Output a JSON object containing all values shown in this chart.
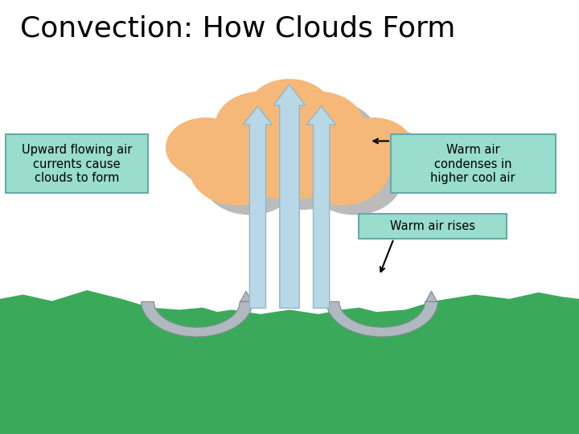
{
  "title": "Convection: How Clouds Form",
  "title_fontsize": 26,
  "background_color": "#ffffff",
  "cloud_color": "#f5b878",
  "cloud_shadow_color": "#bbbbbb",
  "arrow_color": "#b8d8e8",
  "arrow_edge_color": "#90b8cc",
  "u_arrow_color": "#b0b8c0",
  "u_arrow_edge_color": "#808890",
  "ground_color": "#3aaa5a",
  "label_box_color": "#99ddcc",
  "label_box_edge": "#66aaaa",
  "label1_text": "Upward flowing air\ncurrents cause\nclouds to form",
  "label2_text": "Warm air\ncondenses in\nhigher cool air",
  "label3_text": "Warm air rises",
  "label_fontsize": 10.5,
  "cloud_circles": [
    [
      5.0,
      6.4,
      1.0
    ],
    [
      4.1,
      6.1,
      0.82
    ],
    [
      5.9,
      6.1,
      0.82
    ],
    [
      3.55,
      6.6,
      0.68
    ],
    [
      6.45,
      6.6,
      0.68
    ],
    [
      4.5,
      7.1,
      0.78
    ],
    [
      5.5,
      7.1,
      0.78
    ],
    [
      5.0,
      7.45,
      0.72
    ],
    [
      4.1,
      6.75,
      0.6
    ],
    [
      5.9,
      6.75,
      0.6
    ]
  ],
  "ground_x": [
    0,
    0.4,
    0.9,
    1.5,
    2.1,
    2.6,
    3.1,
    3.5,
    3.75,
    4.0,
    4.5,
    5.0,
    5.5,
    5.9,
    6.2,
    6.5,
    7.0,
    7.5,
    8.2,
    8.8,
    9.3,
    9.7,
    10.0,
    10.0,
    0.0
  ],
  "ground_y": [
    3.1,
    3.2,
    3.05,
    3.3,
    3.1,
    2.9,
    2.85,
    2.9,
    2.8,
    2.85,
    2.75,
    2.85,
    2.75,
    2.85,
    2.9,
    2.8,
    2.85,
    3.05,
    3.2,
    3.1,
    3.25,
    3.15,
    3.1,
    0.0,
    0.0
  ]
}
